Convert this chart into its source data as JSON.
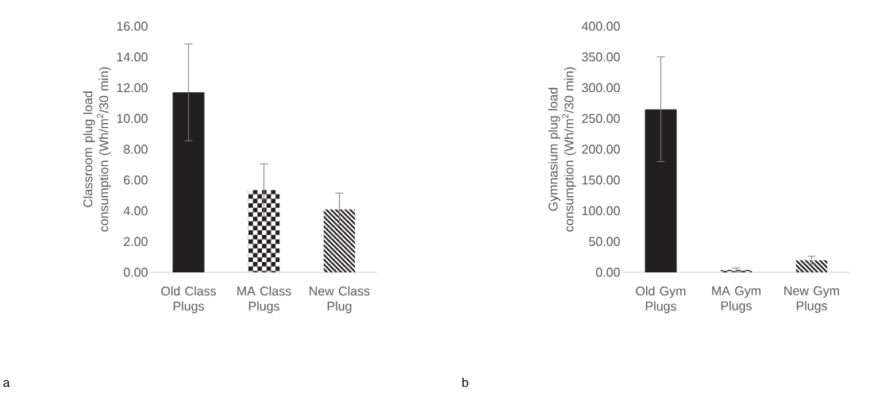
{
  "chart_data": [
    {
      "type": "bar",
      "categories": [
        "Old Class Plugs",
        "MA Class Plugs",
        "New Class Plug"
      ],
      "values": [
        11.7,
        5.35,
        4.1
      ],
      "colors": [
        "#231f20",
        "#231f20",
        "#231f20"
      ],
      "errors": [
        3.15,
        1.7,
        1.05
      ],
      "ylabel": "Classroom  plug load consumption (Wh/m$^{2}$/30 min)",
      "ylim": [
        0,
        16
      ],
      "yticks": [
        {
          "value": 0,
          "label": "0.00"
        },
        {
          "value": 2,
          "label": "2.00"
        },
        {
          "value": 4,
          "label": "4.00"
        },
        {
          "value": 6,
          "label": "6.00"
        },
        {
          "value": 8,
          "label": "8.00"
        },
        {
          "value": 10,
          "label": "10.00"
        },
        {
          "value": 12,
          "label": "12.00"
        },
        {
          "value": 14,
          "label": "14.00"
        },
        {
          "value": 16,
          "label": "16.00"
        }
      ],
      "annotations": [
        "a"
      ]
    },
    {
      "type": "bar",
      "categories": [
        "Old Gym Plugs",
        "MA Gym Plugs",
        "New Gym Plugs"
      ],
      "values": [
        265,
        4,
        20
      ],
      "colors": [
        "#231f20",
        "#231f20",
        "#231f20"
      ],
      "errors": [
        85,
        3,
        6
      ],
      "ylabel": "Gymnasium  plug load consumption (Wh/m$^{2}$/30 min)",
      "ylim": [
        0,
        400
      ],
      "yticks": [
        {
          "value": 0,
          "label": "0.00"
        },
        {
          "value": 50,
          "label": "50.00"
        },
        {
          "value": 100,
          "label": "100.00"
        },
        {
          "value": 150,
          "label": "150.00"
        },
        {
          "value": 200,
          "label": "200.00"
        },
        {
          "value": 250,
          "label": "250.00"
        },
        {
          "value": 300,
          "label": "300.00"
        },
        {
          "value": 350,
          "label": "350.00"
        },
        {
          "value": 400,
          "label": "400.00"
        }
      ],
      "annotations": [
        "b"
      ]
    }
  ]
}
